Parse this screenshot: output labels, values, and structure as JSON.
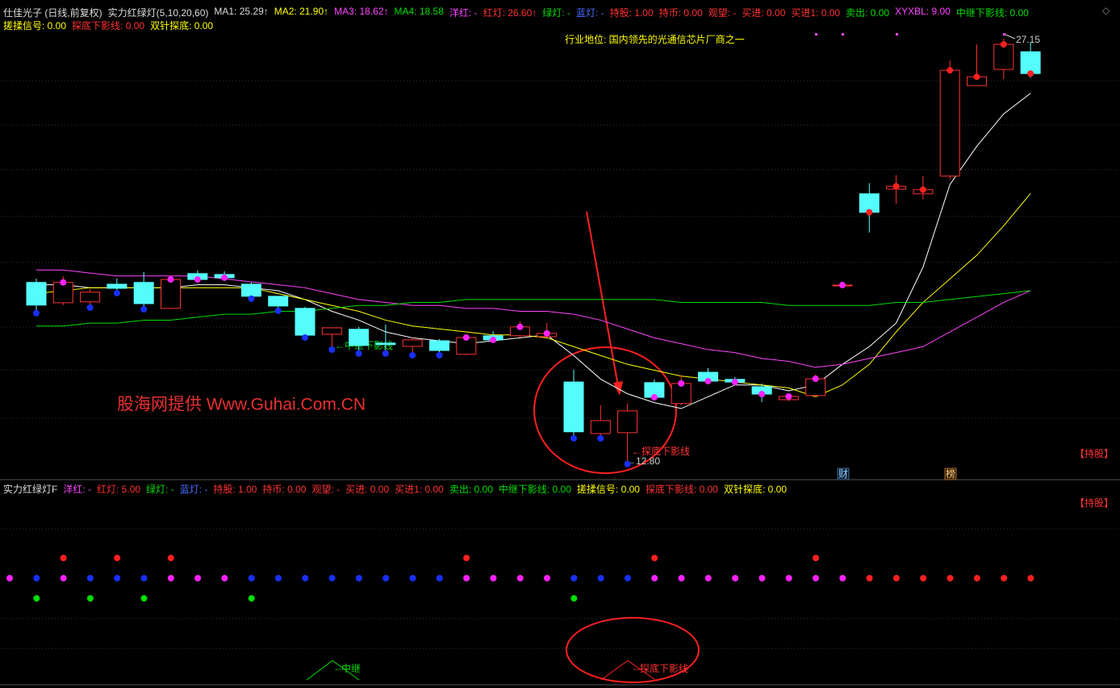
{
  "header": {
    "line1": [
      "仕佳光子 (日线,前复权)",
      "实力红绿灯(5,10,20,60)",
      "MA1: 25.29↑",
      "MA2: 21.90↑",
      "MA3: 18.62↑",
      "MA4: 18.58",
      "洋红: -",
      "红灯: 26.60↑",
      "绿灯: -",
      "蓝灯: -",
      "持股: 1.00",
      "持币: 0.00",
      "观望: -",
      "买进: 0.00",
      "买进1: 0.00",
      "卖出: 0.00",
      "XYXBL: 9.00",
      "中继下影线: 0.00"
    ],
    "line2": [
      "搓揉信号: 0.00",
      "探底下影线: 0.00",
      "双针探底: 0.00"
    ]
  },
  "lower_header": [
    "实力红绿灯F",
    "洋红: -",
    "红灯: 5.00",
    "绿灯: -",
    "蓝灯: -",
    "持股: 1.00",
    "持币: 0.00",
    "观望: -",
    "买进: 0.00",
    "买进1: 0.00",
    "卖出: 0.00",
    "中继下影线: 0.00",
    "搓揉信号: 0.00",
    "探底下影线: 0.00",
    "双针探底: 0.00"
  ],
  "annotations": {
    "industry": "行业地位: 国内领先的光通信芯片厂商之一",
    "watermark": "股海网提供 Www.Guhai.Com.CN",
    "relay": "←中继下影线",
    "bottom": "←探底下影线",
    "low_label": "←12.80",
    "high_label": 27.15,
    "hold": "【持股】",
    "cai": "财",
    "bang": "榜"
  },
  "lower_panel": {
    "hold": "【持股】",
    "relay": "--中继",
    "bottom": "--探底下影线"
  },
  "chart_data": {
    "type": "candlestick",
    "ylim": [
      12.24,
      27.37
    ],
    "up_color": "#ff3232",
    "down_color": "#54fcfc",
    "open": [
      18.88,
      18.19,
      18.22,
      18.82,
      18.88,
      18.0,
      19.18,
      19.15,
      18.82,
      18.41,
      18.0,
      17.12,
      17.29,
      16.82,
      16.71,
      16.9,
      16.44,
      17.07,
      17.07,
      17.04,
      15.5,
      13.75,
      13.78,
      15.48,
      14.77,
      15.83,
      15.59,
      15.34,
      14.9,
      15.04,
      18.79,
      21.89,
      22.05,
      21.89,
      22.49,
      25.56,
      26.11,
      26.71
    ],
    "high": [
      19.01,
      19.09,
      18.66,
      19.01,
      19.23,
      19.07,
      19.29,
      19.26,
      18.88,
      18.41,
      18.05,
      17.34,
      17.37,
      17.45,
      17.01,
      16.96,
      17.09,
      17.23,
      17.56,
      17.51,
      15.92,
      14.71,
      14.77,
      15.59,
      15.72,
      15.97,
      15.67,
      15.45,
      15.09,
      15.75,
      18.79,
      22.25,
      22.52,
      22.49,
      26.41,
      26.96,
      27.15,
      27.04
    ],
    "low": [
      17.92,
      18.11,
      18.11,
      18.6,
      18.05,
      18.0,
      18.88,
      18.93,
      18.41,
      18.0,
      17.09,
      16.68,
      16.55,
      16.55,
      16.49,
      16.49,
      16.41,
      16.87,
      17.01,
      17.01,
      13.67,
      13.67,
      12.8,
      14.9,
      14.71,
      15.45,
      15.45,
      14.82,
      14.85,
      14.98,
      18.79,
      20.57,
      21.56,
      21.7,
      22.38,
      25.56,
      25.78,
      25.83
    ],
    "close": [
      18.11,
      18.88,
      18.55,
      18.68,
      18.16,
      18.98,
      18.98,
      19.04,
      18.41,
      18.08,
      17.09,
      17.34,
      16.74,
      16.77,
      16.93,
      16.57,
      17.01,
      16.93,
      17.37,
      17.15,
      13.81,
      14.19,
      14.52,
      14.98,
      15.45,
      15.53,
      15.5,
      15.09,
      15.01,
      15.61,
      18.79,
      21.26,
      22.14,
      22.03,
      26.08,
      25.86,
      26.96,
      25.97
    ],
    "series": [
      {
        "color": "#ffffff",
        "values": [
          18.8,
          18.8,
          18.7,
          18.7,
          18.7,
          18.7,
          18.8,
          18.8,
          18.7,
          18.6,
          18.3,
          17.9,
          17.6,
          17.2,
          17.0,
          16.9,
          16.8,
          16.9,
          17.0,
          17.1,
          16.4,
          15.6,
          15.1,
          14.8,
          14.6,
          15.0,
          15.4,
          15.4,
          15.2,
          15.4,
          16.1,
          16.7,
          17.5,
          19.4,
          22.2,
          23.5,
          24.6,
          25.3
        ]
      },
      {
        "color": "#ffff00",
        "values": [
          18.5,
          18.6,
          18.7,
          18.7,
          18.7,
          18.7,
          18.7,
          18.7,
          18.7,
          18.5,
          18.3,
          18.1,
          17.9,
          17.6,
          17.4,
          17.3,
          17.2,
          17.1,
          17.1,
          17.0,
          16.7,
          16.4,
          16.1,
          15.9,
          15.7,
          15.6,
          15.5,
          15.4,
          15.3,
          15.0,
          15.4,
          16.1,
          17.2,
          18.2,
          19.0,
          19.8,
          20.8,
          21.9
        ]
      },
      {
        "color": "#ff44ff",
        "values": [
          19.3,
          19.3,
          19.2,
          19.1,
          19.1,
          19.1,
          19.1,
          19.0,
          18.9,
          18.8,
          18.7,
          18.5,
          18.3,
          18.2,
          18.1,
          18.1,
          18.0,
          18.0,
          17.9,
          17.9,
          17.8,
          17.6,
          17.3,
          17.0,
          16.8,
          16.6,
          16.5,
          16.3,
          16.2,
          16.0,
          16.1,
          16.3,
          16.5,
          16.7,
          17.2,
          17.7,
          18.2,
          18.6
        ]
      },
      {
        "color": "#00dd00",
        "values": [
          17.4,
          17.4,
          17.5,
          17.5,
          17.6,
          17.6,
          17.7,
          17.8,
          17.8,
          17.9,
          17.9,
          18.0,
          18.1,
          18.1,
          18.2,
          18.2,
          18.3,
          18.3,
          18.3,
          18.3,
          18.3,
          18.3,
          18.3,
          18.3,
          18.2,
          18.2,
          18.2,
          18.2,
          18.1,
          18.1,
          18.1,
          18.1,
          18.2,
          18.2,
          18.3,
          18.4,
          18.5,
          18.6
        ]
      }
    ]
  }
}
